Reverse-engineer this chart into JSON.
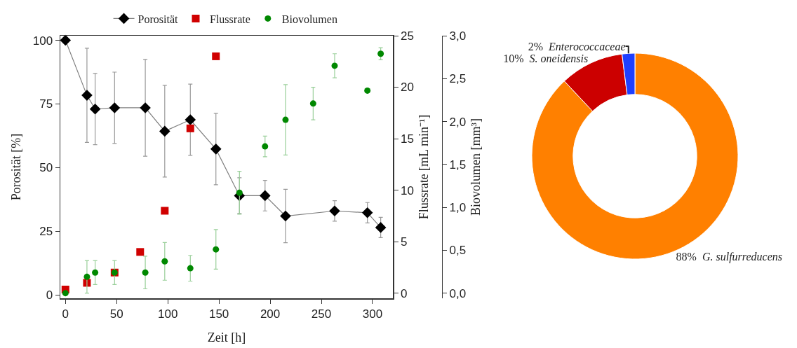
{
  "chart_data": [
    {
      "type": "line",
      "xlabel": "Zeit [h]",
      "ylabel": "Porosität [%]",
      "y2label": "Flussrate [mL min⁻¹]",
      "y3label": "Biovolumen [mm³]",
      "xlim": [
        -5,
        320
      ],
      "xticks": [
        0,
        50,
        100,
        150,
        200,
        250,
        300
      ],
      "ylim": [
        -1.3,
        101.8
      ],
      "yticks": [
        0,
        25,
        50,
        75,
        100
      ],
      "y2lim": [
        -0.5,
        25
      ],
      "y2ticks": [
        0,
        5,
        10,
        15,
        20,
        25
      ],
      "y3lim": [
        -0.06,
        3.0
      ],
      "y3ticks": [
        {
          "value": 0,
          "label": "0,0"
        },
        {
          "value": 0.5,
          "label": "0,5"
        },
        {
          "value": 1,
          "label": "1,0"
        },
        {
          "value": 1.5,
          "label": "1,5"
        },
        {
          "value": 2,
          "label": "2,0"
        },
        {
          "value": 2.5,
          "label": "2,5"
        },
        {
          "value": 3,
          "label": "3,0"
        }
      ],
      "legend": "top",
      "series": [
        {
          "name": "Porosität",
          "type": "line",
          "marker": "diamond",
          "line_style": "solid",
          "color": "#000000",
          "x": [
            0,
            21,
            29,
            48,
            78,
            97,
            122,
            147,
            170,
            195,
            215,
            263,
            295,
            308
          ],
          "values": [
            100,
            78.4,
            73,
            73.5,
            73.5,
            64.3,
            68.8,
            57.3,
            39,
            39,
            31,
            33,
            32.3,
            26.5
          ],
          "errors": [
            null,
            18.5,
            14,
            14,
            19,
            18,
            14,
            14,
            7,
            6,
            10.5,
            4,
            4,
            4
          ]
        },
        {
          "name": "Flussrate",
          "type": "scatter",
          "marker": "square",
          "axis": "y2",
          "color": "#d00000",
          "x": [
            0,
            21,
            48,
            73,
            97,
            122,
            147
          ],
          "values": [
            0.35,
            1.0,
            2.0,
            4.0,
            8.0,
            16.0,
            23.0
          ]
        },
        {
          "name": "Biovolumen",
          "type": "scatter",
          "marker": "circle",
          "axis": "y3",
          "color": "#008800",
          "x": [
            0,
            21,
            29,
            48,
            78,
            97,
            122,
            147,
            170,
            195,
            215,
            242,
            263,
            295,
            308
          ],
          "values": [
            0.0,
            0.19,
            0.24,
            0.24,
            0.24,
            0.37,
            0.29,
            0.51,
            1.17,
            1.71,
            2.02,
            2.21,
            2.65,
            2.36,
            2.79
          ],
          "errors": [
            null,
            0.19,
            0.14,
            0.14,
            0.19,
            0.22,
            0.15,
            0.23,
            0.25,
            0.12,
            0.41,
            0.19,
            0.14,
            null,
            0.07
          ]
        }
      ]
    },
    {
      "type": "donut",
      "categories": [
        "G. sulfurreducens",
        "S. oneidensis",
        "Enterococcaceae"
      ],
      "values": [
        88,
        10,
        2
      ],
      "colors": [
        "#ff8000",
        "#cc0000",
        "#1f3fff"
      ],
      "value_labels": [
        "88%",
        "10%",
        "2%"
      ]
    }
  ]
}
